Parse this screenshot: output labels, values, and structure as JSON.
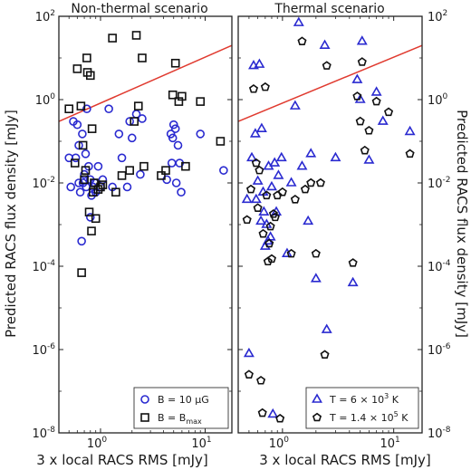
{
  "chart_data": [
    {
      "type": "scatter",
      "title": "Non-thermal scenario",
      "xlabel": "3 x local RACS RMS [mJy]",
      "ylabel": "Predicted RACS flux density [mJy]",
      "xscale": "log",
      "yscale": "log",
      "xlim": [
        0.4,
        18
      ],
      "ylim": [
        1e-08,
        100
      ],
      "xticks": [
        {
          "base": "10",
          "exp": "0"
        },
        {
          "base": "10",
          "exp": "1"
        }
      ],
      "yticks": [
        {
          "base": "10",
          "exp": "-8"
        },
        {
          "base": "10",
          "exp": "-6"
        },
        {
          "base": "10",
          "exp": "-4"
        },
        {
          "base": "10",
          "exp": "-2"
        },
        {
          "base": "10",
          "exp": "0"
        },
        {
          "base": "10",
          "exp": "2"
        }
      ],
      "legend_position": "lower-right",
      "reference_line": {
        "color": "#e03a2f",
        "x": [
          0.4,
          18
        ],
        "y": [
          0.3,
          20
        ]
      },
      "series": [
        {
          "name": "B = 10 μG",
          "marker": "circle",
          "color": "#2a2ad0",
          "points": [
            [
              0.5,
              0.04
            ],
            [
              0.52,
              0.008
            ],
            [
              0.55,
              0.3
            ],
            [
              0.58,
              0.04
            ],
            [
              0.6,
              0.25
            ],
            [
              0.62,
              0.08
            ],
            [
              0.62,
              0.01
            ],
            [
              0.64,
              0.006
            ],
            [
              0.66,
              0.0004
            ],
            [
              0.67,
              0.15
            ],
            [
              0.68,
              0.01
            ],
            [
              0.7,
              0.016
            ],
            [
              0.72,
              0.05
            ],
            [
              0.73,
              0.008
            ],
            [
              0.74,
              0.6
            ],
            [
              0.77,
              0.025
            ],
            [
              0.8,
              0.012
            ],
            [
              0.8,
              0.0015
            ],
            [
              0.82,
              0.005
            ],
            [
              0.85,
              0.008
            ],
            [
              0.88,
              0.01
            ],
            [
              0.9,
              0.006
            ],
            [
              0.95,
              0.025
            ],
            [
              1.0,
              0.008
            ],
            [
              1.05,
              0.012
            ],
            [
              1.2,
              0.6
            ],
            [
              1.3,
              0.008
            ],
            [
              1.5,
              0.15
            ],
            [
              1.6,
              0.04
            ],
            [
              1.8,
              0.008
            ],
            [
              1.9,
              0.3
            ],
            [
              2.0,
              0.12
            ],
            [
              2.2,
              0.45
            ],
            [
              2.4,
              0.016
            ],
            [
              2.5,
              0.35
            ],
            [
              4.3,
              0.012
            ],
            [
              4.7,
              0.15
            ],
            [
              4.8,
              0.03
            ],
            [
              4.9,
              0.12
            ],
            [
              5.0,
              0.25
            ],
            [
              5.2,
              0.2
            ],
            [
              5.3,
              0.01
            ],
            [
              5.5,
              0.08
            ],
            [
              5.7,
              0.03
            ],
            [
              5.9,
              0.006
            ],
            [
              9.0,
              0.15
            ],
            [
              15.0,
              0.02
            ]
          ]
        },
        {
          "name_base": "B = B",
          "name_sub": "max",
          "marker": "square",
          "color": "#111111",
          "points": [
            [
              0.5,
              0.6
            ],
            [
              0.57,
              0.03
            ],
            [
              0.6,
              5.5
            ],
            [
              0.65,
              0.7
            ],
            [
              0.66,
              7e-05
            ],
            [
              0.68,
              0.08
            ],
            [
              0.7,
              0.012
            ],
            [
              0.72,
              0.02
            ],
            [
              0.74,
              10
            ],
            [
              0.75,
              4.5
            ],
            [
              0.78,
              0.002
            ],
            [
              0.8,
              3.8
            ],
            [
              0.82,
              0.0007
            ],
            [
              0.83,
              0.2
            ],
            [
              0.85,
              0.006
            ],
            [
              0.87,
              0.01
            ],
            [
              0.9,
              0.0014
            ],
            [
              0.95,
              0.007
            ],
            [
              1.0,
              0.008
            ],
            [
              1.05,
              0.009
            ],
            [
              1.3,
              30
            ],
            [
              1.4,
              0.006
            ],
            [
              1.6,
              0.015
            ],
            [
              1.9,
              0.02
            ],
            [
              2.1,
              0.3
            ],
            [
              2.2,
              35
            ],
            [
              2.3,
              0.7
            ],
            [
              2.5,
              10
            ],
            [
              2.6,
              0.025
            ],
            [
              3.8,
              0.015
            ],
            [
              4.2,
              0.02
            ],
            [
              4.9,
              1.3
            ],
            [
              5.2,
              7.5
            ],
            [
              5.6,
              0.9
            ],
            [
              6.0,
              1.2
            ],
            [
              6.5,
              0.025
            ],
            [
              9.0,
              0.9
            ],
            [
              14.0,
              0.1
            ]
          ]
        }
      ]
    },
    {
      "type": "scatter",
      "title": "Thermal scenario",
      "xlabel": "3 x local RACS RMS [mJy]",
      "ylabel": "Predicted RACS flux density [mJy]",
      "xscale": "log",
      "yscale": "log",
      "xlim": [
        0.4,
        18
      ],
      "ylim": [
        1e-08,
        100
      ],
      "xticks": [
        {
          "base": "10",
          "exp": "0"
        },
        {
          "base": "10",
          "exp": "1"
        }
      ],
      "yticks": [
        {
          "base": "10",
          "exp": "-8"
        },
        {
          "base": "10",
          "exp": "-6"
        },
        {
          "base": "10",
          "exp": "-4"
        },
        {
          "base": "10",
          "exp": "-2"
        },
        {
          "base": "10",
          "exp": "0"
        },
        {
          "base": "10",
          "exp": "2"
        }
      ],
      "legend_position": "lower-right",
      "reference_line": {
        "color": "#e03a2f",
        "x": [
          0.4,
          18
        ],
        "y": [
          0.3,
          20
        ]
      },
      "series": [
        {
          "name_parts": [
            "T = 6 × 10",
            "3",
            " K"
          ],
          "marker": "triangle",
          "color": "#2a2ad0",
          "points": [
            [
              0.48,
              0.004
            ],
            [
              0.5,
              8e-07
            ],
            [
              0.53,
              0.04
            ],
            [
              0.55,
              6.5
            ],
            [
              0.57,
              0.15
            ],
            [
              0.58,
              0.004
            ],
            [
              0.6,
              0.011
            ],
            [
              0.62,
              7
            ],
            [
              0.64,
              0.0012
            ],
            [
              0.65,
              0.2
            ],
            [
              0.67,
              0.006
            ],
            [
              0.68,
              0.002
            ],
            [
              0.7,
              0.0003
            ],
            [
              0.72,
              0.001
            ],
            [
              0.74,
              0.0004
            ],
            [
              0.75,
              0.025
            ],
            [
              0.78,
              0.0005
            ],
            [
              0.8,
              0.008
            ],
            [
              0.82,
              2.8e-08
            ],
            [
              0.85,
              0.03
            ],
            [
              0.88,
              0.002
            ],
            [
              0.92,
              0.015
            ],
            [
              0.98,
              0.04
            ],
            [
              1.1,
              0.0002
            ],
            [
              1.2,
              0.01
            ],
            [
              1.3,
              0.7
            ],
            [
              1.4,
              70
            ],
            [
              1.5,
              0.025
            ],
            [
              1.7,
              0.0012
            ],
            [
              1.8,
              0.05
            ],
            [
              2.0,
              5e-05
            ],
            [
              2.4,
              20
            ],
            [
              2.5,
              3e-06
            ],
            [
              3.0,
              0.04
            ],
            [
              4.3,
              4e-05
            ],
            [
              4.7,
              3
            ],
            [
              5.0,
              1
            ],
            [
              5.2,
              25
            ],
            [
              6.0,
              0.035
            ],
            [
              7.0,
              1.5
            ],
            [
              8.0,
              0.3
            ],
            [
              14.0,
              0.17
            ]
          ]
        },
        {
          "name_parts": [
            "T = 1.4 × 10",
            "5",
            " K"
          ],
          "marker": "pentagon",
          "color": "#111111",
          "points": [
            [
              0.48,
              0.0013
            ],
            [
              0.5,
              2.5e-07
            ],
            [
              0.52,
              0.007
            ],
            [
              0.55,
              1.8
            ],
            [
              0.58,
              0.03
            ],
            [
              0.6,
              0.0025
            ],
            [
              0.62,
              0.02
            ],
            [
              0.64,
              1.8e-07
            ],
            [
              0.66,
              3e-08
            ],
            [
              0.67,
              0.0006
            ],
            [
              0.7,
              2
            ],
            [
              0.72,
              0.005
            ],
            [
              0.74,
              0.00013
            ],
            [
              0.76,
              0.00035
            ],
            [
              0.78,
              0.0009
            ],
            [
              0.8,
              0.00015
            ],
            [
              0.83,
              0.0018
            ],
            [
              0.86,
              0.0015
            ],
            [
              0.9,
              0.005
            ],
            [
              0.95,
              2.2e-08
            ],
            [
              1.0,
              0.006
            ],
            [
              1.2,
              0.0002
            ],
            [
              1.3,
              0.004
            ],
            [
              1.5,
              25
            ],
            [
              1.6,
              0.007
            ],
            [
              1.8,
              0.01
            ],
            [
              2.0,
              0.0002
            ],
            [
              2.2,
              0.01
            ],
            [
              2.4,
              7.5e-07
            ],
            [
              2.5,
              6.5
            ],
            [
              4.3,
              0.00012
            ],
            [
              4.7,
              1.2
            ],
            [
              5.0,
              0.3
            ],
            [
              5.2,
              8
            ],
            [
              5.5,
              0.06
            ],
            [
              6.0,
              0.18
            ],
            [
              7.0,
              0.9
            ],
            [
              9.0,
              0.5
            ],
            [
              14.0,
              0.05
            ]
          ]
        }
      ]
    }
  ]
}
